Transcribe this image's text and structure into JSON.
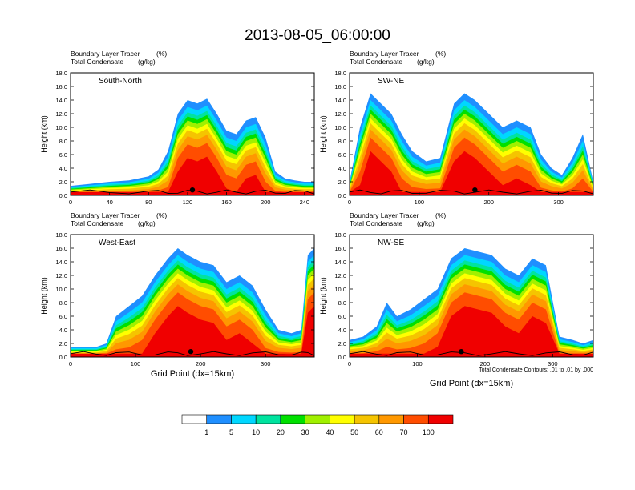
{
  "figure": {
    "title": "2013-08-05_06:00:00",
    "xlabel": "Grid Point (dx=15km)",
    "footnote": "Total Condensate Contours: .01 to .01 by .000"
  },
  "colorbar": {
    "levels": [
      "1",
      "5",
      "10",
      "20",
      "30",
      "40",
      "50",
      "60",
      "70",
      "100"
    ],
    "colors": [
      "#ffffff",
      "#1f8fff",
      "#00d7ff",
      "#00e39f",
      "#00e000",
      "#a0f000",
      "#ffff00",
      "#f5c400",
      "#ff9800",
      "#ff4d00",
      "#f00000"
    ]
  },
  "chart_data": [
    {
      "type": "heatmap",
      "panel": "South-North",
      "header_line1": "Boundary Layer Tracer",
      "header_units1": "(%)",
      "header_line2": "Total Condensate",
      "header_units2": "(g/kg)",
      "ylabel": "Height (km)",
      "xticks": [
        0,
        40,
        80,
        120,
        160,
        200,
        240
      ],
      "xlim": [
        0,
        250
      ],
      "yticks": [
        "0.0",
        "2.0",
        "4.0",
        "6.0",
        "8.0",
        "10.0",
        "12.0",
        "14.0",
        "16.0",
        "18.0"
      ],
      "ylim": [
        0,
        18
      ],
      "series": [
        {
          "name": "tracer",
          "x": [
            0,
            20,
            40,
            60,
            80,
            90,
            100,
            110,
            120,
            130,
            140,
            150,
            160,
            170,
            180,
            190,
            200,
            210,
            220,
            230,
            240,
            250
          ],
          "top": [
            1.4,
            1.7,
            2.0,
            2.2,
            2.8,
            3.8,
            6.5,
            12.0,
            14.0,
            13.5,
            14.2,
            12.0,
            9.5,
            9.0,
            11.0,
            11.5,
            8.5,
            3.5,
            2.5,
            2.2,
            2.0,
            2.0
          ]
        }
      ],
      "marker_x": 125
    },
    {
      "type": "heatmap",
      "panel": "SW-NE",
      "header_line1": "Boundary Layer Tracer",
      "header_units1": "(%)",
      "header_line2": "Total Condensate",
      "header_units2": "(g/kg)",
      "ylabel": "Height (km)",
      "xticks": [
        0,
        100,
        200,
        300
      ],
      "xlim": [
        0,
        350
      ],
      "yticks": [
        "0.0",
        "2.0",
        "4.0",
        "6.0",
        "8.0",
        "10.0",
        "12.0",
        "14.0",
        "16.0",
        "18.0"
      ],
      "ylim": [
        0,
        18
      ],
      "series": [
        {
          "name": "tracer",
          "x": [
            0,
            15,
            30,
            45,
            60,
            75,
            90,
            110,
            130,
            150,
            165,
            180,
            200,
            220,
            240,
            260,
            275,
            290,
            305,
            320,
            335,
            350
          ],
          "top": [
            2.0,
            10.0,
            15.0,
            13.5,
            12.0,
            9.0,
            6.5,
            5.0,
            5.5,
            13.5,
            15.0,
            14.0,
            12.0,
            10.0,
            11.0,
            10.0,
            6.0,
            4.0,
            3.0,
            5.5,
            9.0,
            2.0
          ]
        }
      ],
      "marker_x": 180
    },
    {
      "type": "heatmap",
      "panel": "West-East",
      "header_line1": "Boundary Layer Tracer",
      "header_units1": "(%)",
      "header_line2": "Total Condensate",
      "header_units2": "(g/kg)",
      "ylabel": "Height (km)",
      "xticks": [
        0,
        100,
        200,
        300
      ],
      "xlim": [
        0,
        375
      ],
      "yticks": [
        "0.0",
        "2.0",
        "4.0",
        "6.0",
        "8.0",
        "10.0",
        "12.0",
        "14.0",
        "16.0",
        "18.0"
      ],
      "ylim": [
        0,
        18
      ],
      "series": [
        {
          "name": "tracer",
          "x": [
            0,
            20,
            40,
            55,
            70,
            90,
            110,
            130,
            150,
            165,
            180,
            200,
            220,
            240,
            260,
            280,
            300,
            320,
            340,
            355,
            365,
            375
          ],
          "top": [
            1.5,
            1.5,
            1.5,
            2.0,
            6.0,
            7.5,
            9.0,
            12.0,
            14.5,
            16.0,
            15.0,
            14.0,
            13.5,
            11.0,
            12.0,
            10.5,
            7.0,
            4.0,
            3.5,
            4.0,
            15.0,
            16.0
          ]
        }
      ],
      "marker_x": 185
    },
    {
      "type": "heatmap",
      "panel": "NW-SE",
      "header_line1": "Boundary Layer Tracer",
      "header_units1": "(%)",
      "header_line2": "Total Condensate",
      "header_units2": "(g/kg)",
      "ylabel": "Height (km)",
      "xticks": [
        0,
        100,
        200,
        300
      ],
      "xlim": [
        0,
        360
      ],
      "yticks": [
        "0.0",
        "2.0",
        "4.0",
        "6.0",
        "8.0",
        "10.0",
        "12.0",
        "14.0",
        "16.0",
        "18.0"
      ],
      "ylim": [
        0,
        18
      ],
      "series": [
        {
          "name": "tracer",
          "x": [
            0,
            20,
            40,
            55,
            70,
            90,
            110,
            130,
            150,
            170,
            190,
            210,
            230,
            250,
            270,
            290,
            310,
            330,
            345,
            360
          ],
          "top": [
            2.5,
            3.0,
            4.5,
            8.0,
            6.0,
            7.0,
            8.5,
            10.0,
            14.5,
            16.0,
            15.5,
            15.0,
            13.0,
            12.0,
            14.5,
            13.5,
            3.0,
            2.5,
            2.0,
            2.5
          ]
        }
      ],
      "marker_x": 165
    }
  ]
}
